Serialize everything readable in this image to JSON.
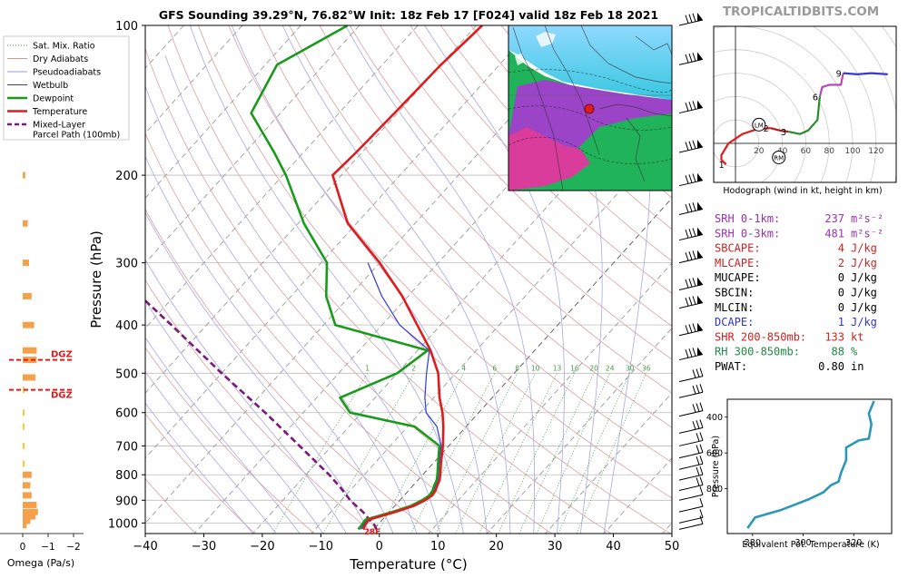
{
  "header": {
    "title": "GFS Sounding 39.29°N, 76.82°W Init: 18z Feb 17 [F024] valid 18z Feb 18 2021",
    "brand": "TROPICALTIDBITS.COM"
  },
  "skewt": {
    "xlabel": "Temperature (°C)",
    "ylabel": "Pressure (hPa)",
    "x_ticks": [
      -40,
      -30,
      -20,
      -10,
      0,
      10,
      20,
      30,
      40,
      50
    ],
    "y_ticks": [
      100,
      200,
      300,
      400,
      500,
      600,
      700,
      800,
      900,
      1000
    ],
    "surface_label": "28F",
    "mixing_ratio_labels": [
      "1",
      "2",
      "4",
      "6",
      "8",
      "10",
      "13",
      "16",
      "20",
      "24",
      "30",
      "36"
    ],
    "legend": [
      {
        "label": "Sat. Mix. Ratio",
        "color": "#4a9a4a",
        "style": "dotted"
      },
      {
        "label": "Dry Adiabats",
        "color": "#d29696",
        "style": "solid"
      },
      {
        "label": "Pseudoadiabats",
        "color": "#9a9ad2",
        "style": "solid"
      },
      {
        "label": "Wetbulb",
        "color": "#2d3bd6",
        "style": "solid"
      },
      {
        "label": "Dewpoint",
        "color": "#1a9a1a",
        "style": "solid"
      },
      {
        "label": "Temperature",
        "color": "#e01b1b",
        "style": "solid"
      },
      {
        "label": "Mixed-Layer Parcel Path (100mb)",
        "color": "#7a1a7a",
        "style": "dashed"
      }
    ]
  },
  "omega": {
    "xlabel": "Omega (Pa/s)",
    "x_ticks": [
      "0",
      "−1",
      "−2"
    ],
    "dgz_label": "DGZ"
  },
  "hodograph": {
    "caption": "Hodograph (wind in kt, height in km)",
    "ring_labels": [
      "20",
      "40",
      "60",
      "80",
      "100",
      "120"
    ],
    "height_labels": [
      "1",
      "2",
      "3",
      "6",
      "9"
    ],
    "markers": [
      "LM",
      "RM"
    ]
  },
  "indices": [
    {
      "label": "SRH 0-1km:",
      "value": "237",
      "unit": "m²s⁻²",
      "color": "#9933aa"
    },
    {
      "label": "SRH 0-3km:",
      "value": "481",
      "unit": "m²s⁻²",
      "color": "#9933aa"
    },
    {
      "label": "SBCAPE:",
      "value": "4",
      "unit": "J/kg",
      "color": "#cc2222"
    },
    {
      "label": "MLCAPE:",
      "value": "2",
      "unit": "J/kg",
      "color": "#cc2222"
    },
    {
      "label": "MUCAPE:",
      "value": "0",
      "unit": "J/kg",
      "color": "#000000"
    },
    {
      "label": "SBCIN:",
      "value": "0",
      "unit": "J/kg",
      "color": "#000000"
    },
    {
      "label": "MLCIN:",
      "value": "0",
      "unit": "J/kg",
      "color": "#000000"
    },
    {
      "label": "DCAPE:",
      "value": "1",
      "unit": "J/kg",
      "color": "#3333cc"
    },
    {
      "label": "SHR 200-850mb:",
      "value": "133",
      "unit": "kt",
      "color": "#cc2222"
    },
    {
      "label": "RH 300-850mb:",
      "value": "88",
      "unit": "%",
      "color": "#228844"
    },
    {
      "label": "PWAT:",
      "value": "0.80",
      "unit": "in",
      "color": "#000000"
    }
  ],
  "theta_e_panel": {
    "xlabel": "Equivalent Pot. Temperature (K)",
    "ylabel": "Pressure (hPa)",
    "x_ticks": [
      "280",
      "300",
      "320"
    ],
    "y_ticks": [
      "400",
      "600",
      "800"
    ]
  },
  "chart_data": [
    {
      "type": "line",
      "title": "GFS Sounding 39.29°N, 76.82°W Init: 18z Feb 17 [F024] valid 18z Feb 18 2021",
      "xlabel": "Temperature (°C)",
      "ylabel": "Pressure (hPa)",
      "xlim": [
        -40,
        50
      ],
      "ylim": [
        1050,
        100
      ],
      "y_scale": "log",
      "x_skewed": true,
      "series": [
        {
          "name": "Temperature",
          "color": "#e01b1b",
          "pressure": [
            1030,
            1010,
            985,
            950,
            925,
            900,
            880,
            860,
            840,
            820,
            800,
            760,
            700,
            640,
            600,
            560,
            500,
            450,
            400,
            350,
            300,
            250,
            200,
            180,
            150,
            120,
            100
          ],
          "values": [
            -1.8,
            -2.1,
            -2.3,
            1.0,
            3.2,
            4.3,
            4.8,
            4.6,
            4.1,
            3.7,
            3.0,
            1.4,
            -1.0,
            -3.9,
            -6.2,
            -9.0,
            -13.0,
            -17.8,
            -24.0,
            -31.0,
            -40.0,
            -51.5,
            -61.5,
            -61.0,
            -60.5,
            -60.0,
            -59.0
          ]
        },
        {
          "name": "Dewpoint",
          "color": "#1a9a1a",
          "pressure": [
            1030,
            1010,
            985,
            950,
            925,
            900,
            880,
            860,
            840,
            820,
            800,
            760,
            700,
            640,
            600,
            560,
            500,
            450,
            400,
            350,
            300,
            250,
            200,
            180,
            150,
            120,
            100
          ],
          "values": [
            -2.6,
            -2.7,
            -2.9,
            0.5,
            2.7,
            3.8,
            4.3,
            4.1,
            3.6,
            3.2,
            2.5,
            0.9,
            -1.6,
            -8.8,
            -22.0,
            -26.0,
            -20.0,
            -18.3,
            -38.0,
            -44.0,
            -49.0,
            -59.0,
            -69.5,
            -75.0,
            -85.0,
            -88.0,
            -82.0
          ]
        },
        {
          "name": "Wetbulb",
          "color": "#2d3bd6",
          "pressure": [
            1030,
            1010,
            985,
            950,
            925,
            900,
            880,
            860,
            840,
            820,
            800,
            760,
            700,
            640,
            600,
            560,
            500,
            450,
            400,
            350,
            300
          ],
          "values": [
            -2.2,
            -2.4,
            -2.6,
            0.7,
            2.9,
            4.0,
            4.5,
            4.3,
            3.8,
            3.4,
            2.7,
            1.1,
            -1.3,
            -5.0,
            -9.0,
            -11.5,
            -15.0,
            -18.0,
            -27.0,
            -34.5,
            -42.0
          ]
        },
        {
          "name": "Mixed-Layer Parcel Path (100mb)",
          "color": "#7a1a7a",
          "pressure": [
            1030,
            1010,
            985,
            950,
            925,
            900,
            850,
            800,
            700,
            600,
            500,
            400,
            300,
            250,
            200,
            150,
            135
          ],
          "values": [
            0.5,
            -0.5,
            -2.2,
            -4.5,
            -6.5,
            -8.5,
            -12.0,
            -16.0,
            -25.5,
            -36.5,
            -50.0,
            -66.0,
            -87.0,
            -99.5,
            -114.0,
            -132.0,
            -139.0
          ]
        }
      ]
    },
    {
      "type": "bar",
      "title": "",
      "xlabel": "Omega (Pa/s)",
      "ylabel": "",
      "xlim": [
        0.1,
        -2.2
      ],
      "pressure": [
        1010,
        990,
        970,
        950,
        920,
        880,
        840,
        800,
        760,
        700,
        640,
        600,
        540,
        510,
        470,
        450,
        400,
        350,
        300,
        250,
        200
      ],
      "values": [
        -0.15,
        -0.3,
        -0.5,
        -0.6,
        -0.55,
        -0.35,
        -0.3,
        -0.35,
        -0.08,
        -0.05,
        -0.04,
        -0.03,
        -0.05,
        -0.5,
        -0.55,
        -0.55,
        -0.45,
        -0.35,
        -0.25,
        -0.2,
        -0.1
      ],
      "dgz_pressure": [
        470,
        540
      ]
    },
    {
      "type": "line",
      "title": "",
      "xlabel": "Hodograph (wind in kt, height in km)",
      "ylabel": "",
      "xlim": [
        -30,
        130
      ],
      "ylim": [
        -30,
        100
      ],
      "series": [
        {
          "name": "0-1 km",
          "color": "#e01b1b",
          "u": [
            -8,
            -12,
            -12,
            -6,
            6,
            18,
            30
          ],
          "v": [
            -18,
            -14,
            -10,
            0,
            8,
            12,
            13
          ]
        },
        {
          "name": "1-3 km",
          "color": "#b01b1b",
          "u": [
            30,
            38,
            45
          ],
          "v": [
            13,
            11,
            10
          ]
        },
        {
          "name": "3-6 km",
          "color": "#2a8a2a",
          "u": [
            45,
            55,
            62,
            70,
            72
          ],
          "v": [
            10,
            8,
            11,
            20,
            40
          ]
        },
        {
          "name": "6-9 km",
          "color": "#b44ab4",
          "u": [
            72,
            74,
            80,
            90,
            92
          ],
          "v": [
            40,
            48,
            50,
            50,
            60
          ]
        },
        {
          "name": "9+ km",
          "color": "#3a3acc",
          "u": [
            92,
            104,
            116,
            130
          ],
          "v": [
            60,
            59,
            60,
            59
          ]
        }
      ],
      "storm_motion": {
        "LM": [
          20,
          16
        ],
        "RM": [
          37,
          -12
        ]
      }
    },
    {
      "type": "line",
      "title": "",
      "xlabel": "Equivalent Pot. Temperature (K)",
      "ylabel": "Pressure (hPa)",
      "xlim": [
        270,
        335
      ],
      "ylim": [
        1050,
        300
      ],
      "series": [
        {
          "name": "Equivalent Pot. Temperature",
          "color": "#2c97b8",
          "x": [
            278,
            281,
            291,
            302,
            308,
            311,
            314,
            315,
            317,
            317,
            322,
            326,
            327,
            326,
            328
          ],
          "y": [
            1020,
            960,
            920,
            860,
            820,
            780,
            760,
            710,
            640,
            570,
            530,
            520,
            440,
            380,
            310
          ]
        }
      ]
    }
  ]
}
